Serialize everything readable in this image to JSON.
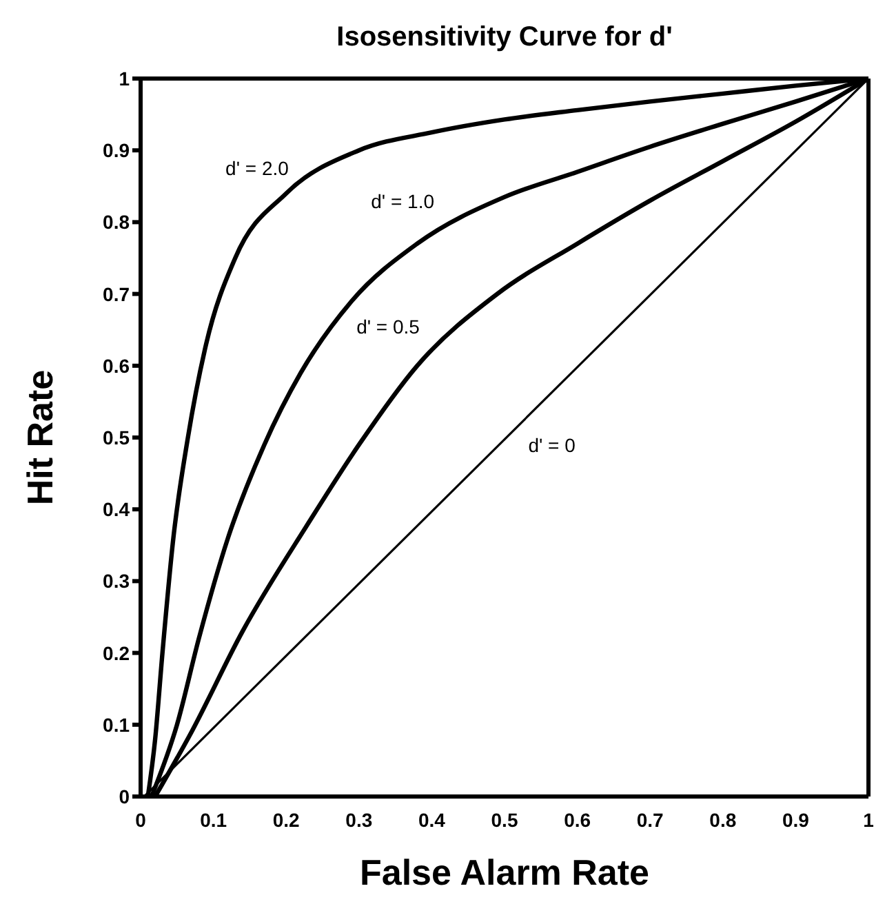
{
  "chart_data": {
    "type": "line",
    "title": "Isosensitivity Curve for d'",
    "xlabel": "False Alarm Rate",
    "ylabel": "Hit Rate",
    "xlim": [
      0,
      1
    ],
    "ylim": [
      0,
      1
    ],
    "xticks": [
      0,
      0.1,
      0.2,
      0.3,
      0.4,
      0.5,
      0.6,
      0.7,
      0.8,
      0.9,
      1
    ],
    "yticks": [
      0,
      0.1,
      0.2,
      0.3,
      0.4,
      0.5,
      0.6,
      0.7,
      0.8,
      0.9,
      1
    ],
    "grid": false,
    "legend": false,
    "marker": "none",
    "line_style": "solid",
    "series": [
      {
        "name": "d' = 2.0",
        "color": "#000000",
        "x": [
          0.01,
          0.02,
          0.03,
          0.045,
          0.065,
          0.09,
          0.13,
          0.2,
          0.3,
          0.4,
          0.5,
          0.6,
          0.7,
          0.8,
          0.9,
          1
        ],
        "values": [
          0,
          0.08,
          0.2,
          0.36,
          0.5,
          0.63,
          0.75,
          0.84,
          0.9,
          0.925,
          0.943,
          0.956,
          0.968,
          0.979,
          0.99,
          1
        ]
      },
      {
        "name": "d' = 1.0",
        "color": "#000000",
        "x": [
          0.015,
          0.05,
          0.08,
          0.12,
          0.17,
          0.22,
          0.29,
          0.38,
          0.5,
          0.6,
          0.7,
          0.8,
          0.9,
          1
        ],
        "values": [
          0,
          0.1,
          0.22,
          0.36,
          0.49,
          0.59,
          0.69,
          0.77,
          0.835,
          0.87,
          0.905,
          0.937,
          0.968,
          1
        ]
      },
      {
        "name": "d' = 0.5",
        "color": "#000000",
        "x": [
          0.02,
          0.07,
          0.14,
          0.23,
          0.3,
          0.38,
          0.49,
          0.6,
          0.7,
          0.8,
          0.9,
          1
        ],
        "values": [
          0,
          0.09,
          0.23,
          0.38,
          0.49,
          0.6,
          0.7,
          0.77,
          0.83,
          0.885,
          0.94,
          1
        ]
      },
      {
        "name": "d' = 0",
        "color": "#000000",
        "x": [
          0.005,
          1
        ],
        "values": [
          0,
          1
        ]
      }
    ]
  }
}
